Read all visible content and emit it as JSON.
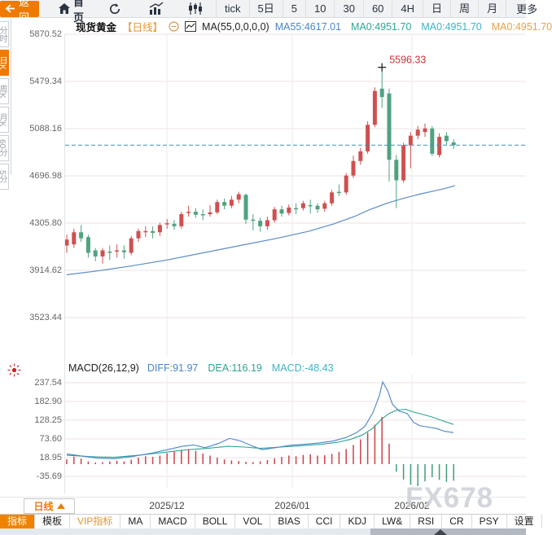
{
  "toolbar": {
    "back_label": "返回",
    "home_label": "首页",
    "periods": [
      "tick",
      "5日",
      "5",
      "10",
      "30",
      "60",
      "4H",
      "日",
      "周",
      "月"
    ],
    "more_label": "更多",
    "icons": [
      "refresh-icon",
      "trend-chart-icon",
      "candlestick-icon",
      "menu-icon"
    ]
  },
  "left_tabs": {
    "items": [
      {
        "label": "分时",
        "active": false
      },
      {
        "label": "日K",
        "active": true
      },
      {
        "label": "周K",
        "active": false
      },
      {
        "label": "月K",
        "active": false
      },
      {
        "label": "60分",
        "active": false
      },
      {
        "label": "5分",
        "active": false
      }
    ]
  },
  "symbol_header": {
    "name": "现货黄金",
    "period": "【日线】",
    "ma_label": "MA(55,0,0,0,0)",
    "values": [
      {
        "text": "MA55:4617.01",
        "color": "#4a86c8"
      },
      {
        "text": "MA0:4951.70",
        "color": "#2fa493"
      },
      {
        "text": "MA0:4951.70",
        "color": "#3fb3c6"
      },
      {
        "text": "MA0:4951.70",
        "color": "#e3a24a"
      }
    ]
  },
  "macd_header": {
    "label": "MACD(26,12,9)",
    "values": [
      {
        "text": "DIFF:91.97",
        "color": "#4a86c8"
      },
      {
        "text": "DEA:116.19",
        "color": "#2fa493"
      },
      {
        "text": "MACD:-48.43",
        "color": "#3fb3c6"
      }
    ]
  },
  "xaxis": {
    "period_box": "日线",
    "labels": [
      {
        "text": "2025/12",
        "x": 205
      },
      {
        "text": "2026/01",
        "x": 359
      },
      {
        "text": "2026/02",
        "x": 506
      }
    ]
  },
  "watermark": "FX678",
  "bottom_tabs": [
    {
      "label": "指标",
      "active": true
    },
    {
      "label": "模板"
    },
    {
      "label": "VIP指标",
      "vip": true
    },
    {
      "label": "MA"
    },
    {
      "label": "MACD"
    },
    {
      "label": "BOLL"
    },
    {
      "label": "VOL"
    },
    {
      "label": "BIAS"
    },
    {
      "label": "CCI"
    },
    {
      "label": "KDJ"
    },
    {
      "label": "LW&"
    },
    {
      "label": "RSI"
    },
    {
      "label": "CR"
    },
    {
      "label": "PSY"
    },
    {
      "label": "设置"
    }
  ],
  "colors": {
    "accent_orange": "#f07a00",
    "up_red": "#cf5050",
    "down_green": "#4fa380",
    "ma_blue": "#5b8cc8",
    "last_price_teal": "#3d93b8",
    "diff_blue": "#4a86c8",
    "dea_teal": "#2fa493",
    "hist_red": "#c9434a",
    "hist_green": "#3f9e77",
    "grid_h": "#efe0e2",
    "grid_v": "#e8eaec",
    "annotation_red": "#c93535"
  },
  "chart_data": {
    "type": "candlestick",
    "title": "现货黄金 日线",
    "main": {
      "ylabels": [
        5870.52,
        5479.34,
        5088.16,
        4696.98,
        4305.8,
        3914.62,
        3523.44
      ],
      "ylim": [
        3523.44,
        5870.52
      ],
      "last_price": 4951.7,
      "peak": {
        "index": 44,
        "value": 5596.33,
        "label": "5596.33"
      },
      "candles": [
        [
          4120,
          4210,
          4060,
          4170
        ],
        [
          4130,
          4260,
          4100,
          4230
        ],
        [
          4230,
          4290,
          4150,
          4180
        ],
        [
          4190,
          4210,
          4020,
          4060
        ],
        [
          4080,
          4100,
          3990,
          4030
        ],
        [
          4030,
          4100,
          3970,
          4080
        ],
        [
          4070,
          4120,
          4000,
          4060
        ],
        [
          4070,
          4130,
          4020,
          4080
        ],
        [
          4080,
          4120,
          4010,
          4065
        ],
        [
          4060,
          4200,
          4040,
          4180
        ],
        [
          4180,
          4260,
          4150,
          4240
        ],
        [
          4230,
          4280,
          4190,
          4240
        ],
        [
          4240,
          4280,
          4180,
          4225
        ],
        [
          4230,
          4310,
          4200,
          4290
        ],
        [
          4295,
          4340,
          4260,
          4305
        ],
        [
          4300,
          4330,
          4250,
          4280
        ],
        [
          4280,
          4400,
          4260,
          4380
        ],
        [
          4390,
          4450,
          4360,
          4400
        ],
        [
          4400,
          4430,
          4350,
          4375
        ],
        [
          4380,
          4420,
          4330,
          4370
        ],
        [
          4380,
          4455,
          4360,
          4395
        ],
        [
          4395,
          4500,
          4380,
          4480
        ],
        [
          4480,
          4510,
          4420,
          4450
        ],
        [
          4450,
          4530,
          4430,
          4500
        ],
        [
          4500,
          4565,
          4470,
          4545
        ],
        [
          4540,
          4550,
          4300,
          4335
        ],
        [
          4335,
          4380,
          4245,
          4325
        ],
        [
          4325,
          4350,
          4235,
          4280
        ],
        [
          4280,
          4360,
          4250,
          4330
        ],
        [
          4330,
          4440,
          4310,
          4420
        ],
        [
          4420,
          4450,
          4360,
          4385
        ],
        [
          4390,
          4460,
          4370,
          4435
        ],
        [
          4430,
          4470,
          4380,
          4420
        ],
        [
          4430,
          4490,
          4410,
          4470
        ],
        [
          4455,
          4500,
          4385,
          4445
        ],
        [
          4450,
          4470,
          4390,
          4420
        ],
        [
          4425,
          4490,
          4400,
          4470
        ],
        [
          4470,
          4580,
          4450,
          4560
        ],
        [
          4565,
          4625,
          4530,
          4555
        ],
        [
          4560,
          4720,
          4540,
          4700
        ],
        [
          4700,
          4865,
          4680,
          4820
        ],
        [
          4820,
          4930,
          4790,
          4900
        ],
        [
          4900,
          5150,
          4880,
          5120
        ],
        [
          5120,
          5430,
          5100,
          5400
        ],
        [
          5420,
          5596.33,
          5260,
          5350
        ],
        [
          5380,
          5420,
          4650,
          4830
        ],
        [
          4830,
          4870,
          4430,
          4660
        ],
        [
          4660,
          4970,
          4640,
          4950
        ],
        [
          4950,
          5060,
          4760,
          5030
        ],
        [
          5030,
          5110,
          5000,
          5080
        ],
        [
          5060,
          5130,
          5020,
          5090
        ],
        [
          5090,
          5110,
          4860,
          4880
        ],
        [
          4870,
          5050,
          4850,
          5020
        ],
        [
          5030,
          5060,
          4950,
          4985
        ],
        [
          4975,
          5000,
          4920,
          4951.7
        ]
      ],
      "ma55": [
        [
          82,
          3878
        ],
        [
          120,
          3910
        ],
        [
          160,
          3950
        ],
        [
          205,
          4000
        ],
        [
          250,
          4060
        ],
        [
          295,
          4120
        ],
        [
          340,
          4180
        ],
        [
          380,
          4240
        ],
        [
          410,
          4300
        ],
        [
          435,
          4360
        ],
        [
          455,
          4420
        ],
        [
          475,
          4470
        ],
        [
          495,
          4510
        ],
        [
          515,
          4545
        ],
        [
          535,
          4575
        ],
        [
          548,
          4595
        ],
        [
          559,
          4617
        ]
      ],
      "vgrid_x": [
        205,
        359,
        506
      ]
    },
    "macd": {
      "ylabels": [
        237.54,
        182.9,
        128.25,
        73.6,
        18.95,
        -35.69
      ],
      "diff": [
        [
          82,
          30
        ],
        [
          100,
          24
        ],
        [
          118,
          18
        ],
        [
          140,
          16
        ],
        [
          162,
          22
        ],
        [
          186,
          32
        ],
        [
          205,
          42
        ],
        [
          224,
          52
        ],
        [
          238,
          56
        ],
        [
          252,
          48
        ],
        [
          268,
          60
        ],
        [
          282,
          75
        ],
        [
          295,
          68
        ],
        [
          308,
          55
        ],
        [
          322,
          42
        ],
        [
          338,
          48
        ],
        [
          356,
          55
        ],
        [
          374,
          58
        ],
        [
          392,
          62
        ],
        [
          410,
          68
        ],
        [
          425,
          78
        ],
        [
          438,
          92
        ],
        [
          448,
          110
        ],
        [
          458,
          150
        ],
        [
          466,
          200
        ],
        [
          470,
          240
        ],
        [
          476,
          215
        ],
        [
          482,
          175
        ],
        [
          490,
          155
        ],
        [
          500,
          148
        ],
        [
          508,
          122
        ],
        [
          516,
          112
        ],
        [
          526,
          108
        ],
        [
          536,
          104
        ],
        [
          546,
          96
        ],
        [
          557,
          92
        ]
      ],
      "dea": [
        [
          82,
          26
        ],
        [
          110,
          22
        ],
        [
          140,
          20
        ],
        [
          170,
          26
        ],
        [
          200,
          34
        ],
        [
          230,
          42
        ],
        [
          255,
          46
        ],
        [
          280,
          52
        ],
        [
          300,
          50
        ],
        [
          320,
          46
        ],
        [
          345,
          50
        ],
        [
          370,
          54
        ],
        [
          395,
          58
        ],
        [
          415,
          64
        ],
        [
          430,
          72
        ],
        [
          445,
          85
        ],
        [
          458,
          105
        ],
        [
          468,
          130
        ],
        [
          478,
          148
        ],
        [
          488,
          158
        ],
        [
          498,
          160
        ],
        [
          508,
          152
        ],
        [
          518,
          146
        ],
        [
          530,
          138
        ],
        [
          542,
          128
        ],
        [
          557,
          116
        ]
      ],
      "hist": [
        14,
        22,
        16,
        8,
        5,
        6,
        8,
        10,
        8,
        13,
        19,
        23,
        21,
        25,
        32,
        37,
        42,
        44,
        39,
        31,
        25,
        19,
        14,
        11,
        9,
        7,
        6,
        8,
        12,
        17,
        21,
        25,
        23,
        27,
        29,
        25,
        26,
        30,
        36,
        44,
        56,
        72,
        92,
        115,
        138,
        60,
        -22,
        -45,
        -60,
        -64,
        -50,
        -38,
        -46,
        -52,
        -48.43
      ]
    }
  }
}
